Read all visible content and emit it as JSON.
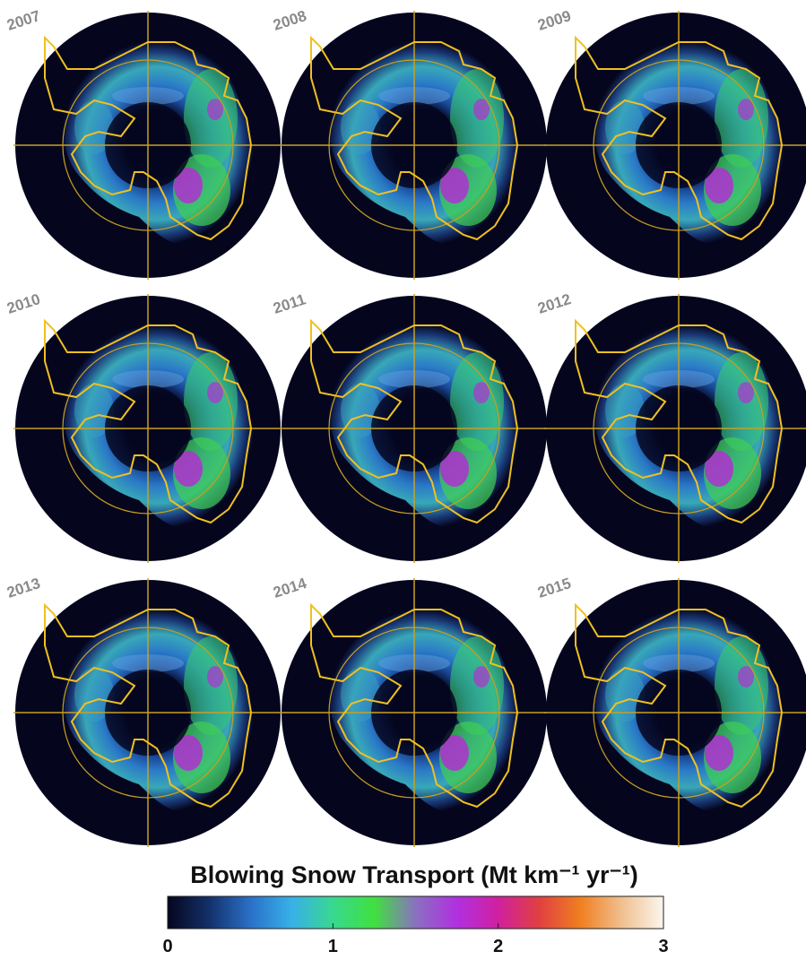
{
  "panels": [
    {
      "label": "2007"
    },
    {
      "label": "2008"
    },
    {
      "label": "2009"
    },
    {
      "label": "2010"
    },
    {
      "label": "2011"
    },
    {
      "label": "2012"
    },
    {
      "label": "2013"
    },
    {
      "label": "2014"
    },
    {
      "label": "2015"
    }
  ],
  "colorbar": {
    "title": "Blowing Snow Transport (Mt km⁻¹ yr⁻¹)",
    "lim": [
      0,
      3
    ],
    "ticks": [
      0,
      1,
      2,
      3
    ],
    "colors": [
      "#05061e",
      "#14306a",
      "#2a70c8",
      "#38b0e8",
      "#38d890",
      "#40e040",
      "#8a70c0",
      "#b030e0",
      "#d020a0",
      "#e04040",
      "#f08020",
      "#f0c090",
      "#fbf6ee"
    ]
  }
}
